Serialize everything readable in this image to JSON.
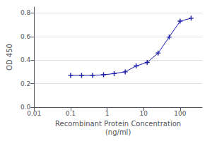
{
  "chart_data": {
    "type": "line",
    "x": [
      0.1,
      0.2,
      0.4,
      0.8,
      1.56,
      3.13,
      6.25,
      12.5,
      25,
      50,
      100,
      200
    ],
    "values": [
      0.27,
      0.27,
      0.27,
      0.275,
      0.285,
      0.3,
      0.35,
      0.38,
      0.46,
      0.595,
      0.73,
      0.755
    ],
    "color": "#1a1aaa",
    "marker": "plus",
    "xlabel": "Recombinant Protein Concentration\n(ng/ml)",
    "ylabel": "OD 450",
    "log": "x",
    "xlim": [
      0.01,
      400
    ],
    "xticks": [
      0.01,
      0.1,
      1,
      10,
      100
    ],
    "ylim": [
      0.0,
      0.85
    ],
    "yticks": [
      {
        "value": 0.0,
        "label": "0.0"
      },
      {
        "value": 0.2,
        "label": "0.2"
      },
      {
        "value": 0.4,
        "label": "0.4"
      },
      {
        "value": 0.6,
        "label": "0.6"
      },
      {
        "value": 0.8,
        "label": "0.8"
      }
    ],
    "grid": "y"
  }
}
